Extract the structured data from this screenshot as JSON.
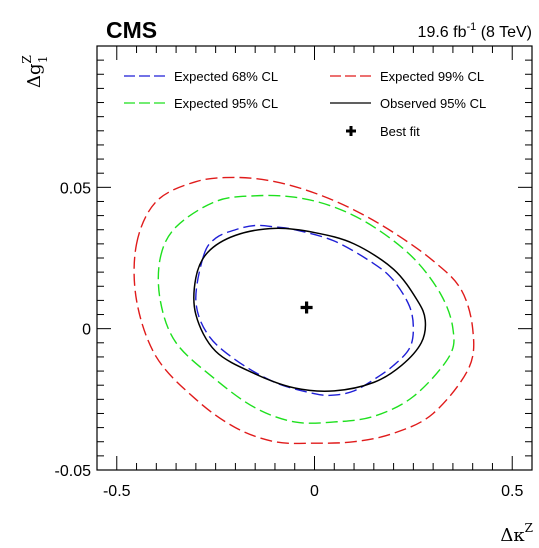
{
  "chart_data": {
    "type": "scatter",
    "experiment_label": "CMS",
    "lumi_label_base": "19.6 fb",
    "lumi_label_exp": "-1",
    "lumi_label_tail": " (8 TeV)",
    "xlabel_base": "Δκ",
    "xlabel_sup": "Z",
    "ylabel_base": "Δg",
    "ylabel_sup": "Z",
    "ylabel_sub": "1",
    "xlim": [
      -0.55,
      0.55
    ],
    "ylim": [
      -0.05,
      0.1
    ],
    "x_ticks": [
      {
        "value": -0.5,
        "label": "-0.5"
      },
      {
        "value": 0,
        "label": "0"
      },
      {
        "value": 0.5,
        "label": "0.5"
      }
    ],
    "y_ticks": [
      {
        "value": -0.05,
        "label": "-0.05"
      },
      {
        "value": 0,
        "label": "0"
      },
      {
        "value": 0.05,
        "label": "0.05"
      }
    ],
    "grid": false,
    "legend_position": "top",
    "legend": [
      {
        "label": "Expected 68% CL",
        "color": "#1f1fd6",
        "style": "dashed"
      },
      {
        "label": "Expected 99% CL",
        "color": "#e01b1b",
        "style": "dashed"
      },
      {
        "label": "Expected 95% CL",
        "color": "#1ee01e",
        "style": "dashed"
      },
      {
        "label": "Observed 95% CL",
        "color": "#000000",
        "style": "solid"
      },
      {
        "label": "Best fit",
        "color": "#000000",
        "style": "cross"
      }
    ],
    "best_fit": {
      "x": -0.02,
      "y": 0.0075
    },
    "series": [
      {
        "name": "Expected 99% CL",
        "color": "#e01b1b",
        "dash": "dashed",
        "points": [
          [
            -0.45,
            0.03
          ],
          [
            -0.4,
            0.045
          ],
          [
            -0.3,
            0.052
          ],
          [
            -0.2,
            0.0535
          ],
          [
            -0.1,
            0.052
          ],
          [
            0.0,
            0.048
          ],
          [
            0.1,
            0.042
          ],
          [
            0.2,
            0.034
          ],
          [
            0.3,
            0.024
          ],
          [
            0.37,
            0.014
          ],
          [
            0.4,
            0.0
          ],
          [
            0.39,
            -0.014
          ],
          [
            0.3,
            -0.03
          ],
          [
            0.2,
            -0.037
          ],
          [
            0.1,
            -0.04
          ],
          [
            0.0,
            -0.0405
          ],
          [
            -0.1,
            -0.04
          ],
          [
            -0.2,
            -0.035
          ],
          [
            -0.3,
            -0.025
          ],
          [
            -0.4,
            -0.01
          ],
          [
            -0.45,
            0.01
          ],
          [
            -0.45,
            0.03
          ]
        ]
      },
      {
        "name": "Expected 95% CL",
        "color": "#1ee01e",
        "dash": "dashed",
        "points": [
          [
            -0.39,
            0.025
          ],
          [
            -0.35,
            0.036
          ],
          [
            -0.25,
            0.045
          ],
          [
            -0.15,
            0.047
          ],
          [
            -0.05,
            0.0465
          ],
          [
            0.05,
            0.043
          ],
          [
            0.15,
            0.036
          ],
          [
            0.25,
            0.025
          ],
          [
            0.32,
            0.012
          ],
          [
            0.35,
            0.0
          ],
          [
            0.34,
            -0.01
          ],
          [
            0.25,
            -0.024
          ],
          [
            0.15,
            -0.031
          ],
          [
            0.05,
            -0.033
          ],
          [
            -0.05,
            -0.033
          ],
          [
            -0.15,
            -0.028
          ],
          [
            -0.25,
            -0.018
          ],
          [
            -0.35,
            -0.005
          ],
          [
            -0.39,
            0.01
          ],
          [
            -0.39,
            0.025
          ]
        ]
      },
      {
        "name": "Expected 68% CL",
        "color": "#1f1fd6",
        "dash": "dashed",
        "points": [
          [
            -0.28,
            0.026
          ],
          [
            -0.25,
            0.032
          ],
          [
            -0.2,
            0.035
          ],
          [
            -0.15,
            0.0365
          ],
          [
            -0.1,
            0.036
          ],
          [
            -0.05,
            0.035
          ],
          [
            0.05,
            0.031
          ],
          [
            0.15,
            0.023
          ],
          [
            0.2,
            0.017
          ],
          [
            0.24,
            0.008
          ],
          [
            0.25,
            0.0
          ],
          [
            0.24,
            -0.007
          ],
          [
            0.2,
            -0.013
          ],
          [
            0.15,
            -0.018
          ],
          [
            0.1,
            -0.022
          ],
          [
            0.05,
            -0.0235
          ],
          [
            0.0,
            -0.023
          ],
          [
            -0.1,
            -0.019
          ],
          [
            -0.2,
            -0.011
          ],
          [
            -0.27,
            -0.002
          ],
          [
            -0.3,
            0.01
          ],
          [
            -0.28,
            0.026
          ]
        ]
      },
      {
        "name": "Observed 95% CL",
        "color": "#000000",
        "dash": "solid",
        "points": [
          [
            -0.3,
            0.018
          ],
          [
            -0.27,
            0.027
          ],
          [
            -0.2,
            0.033
          ],
          [
            -0.1,
            0.0355
          ],
          [
            0.0,
            0.034
          ],
          [
            0.1,
            0.03
          ],
          [
            0.2,
            0.021
          ],
          [
            0.26,
            0.01
          ],
          [
            0.28,
            0.003
          ],
          [
            0.27,
            -0.005
          ],
          [
            0.22,
            -0.013
          ],
          [
            0.15,
            -0.019
          ],
          [
            0.05,
            -0.022
          ],
          [
            -0.05,
            -0.021
          ],
          [
            -0.15,
            -0.016
          ],
          [
            -0.25,
            -0.008
          ],
          [
            -0.3,
            0.005
          ],
          [
            -0.3,
            0.018
          ]
        ]
      }
    ]
  }
}
